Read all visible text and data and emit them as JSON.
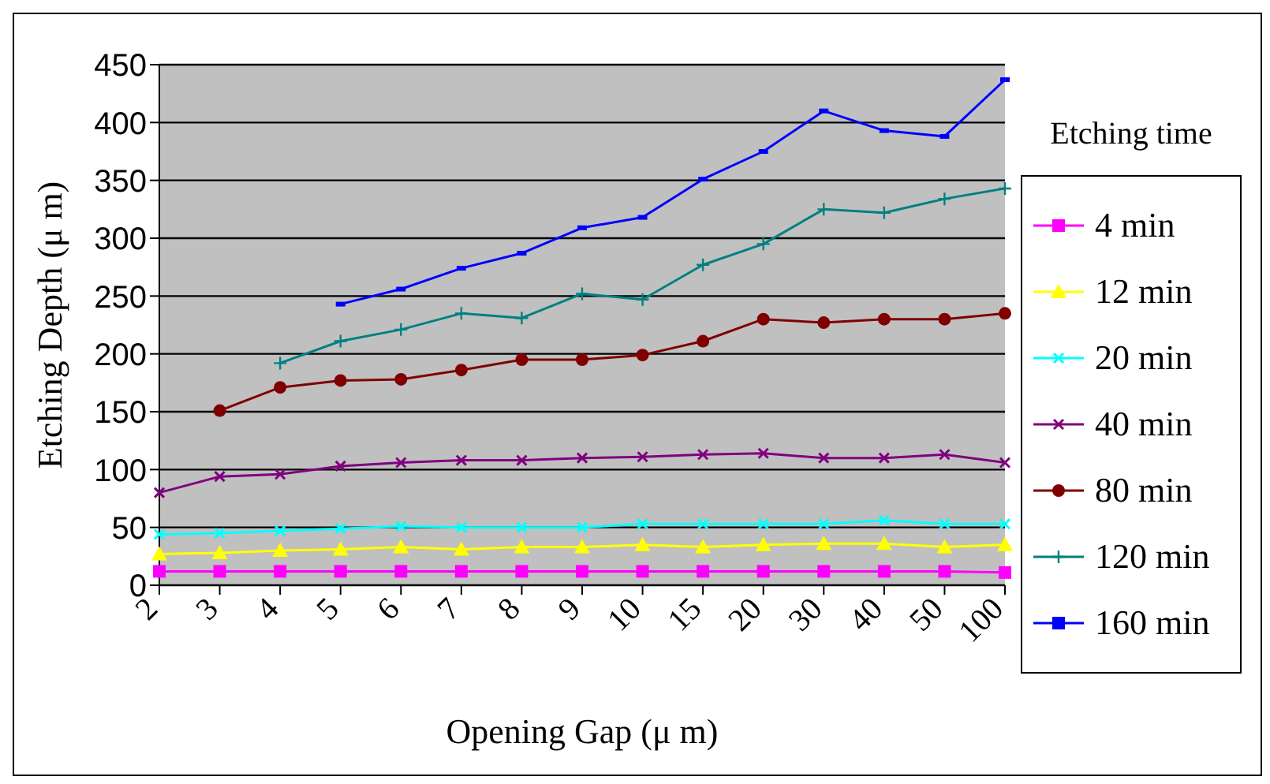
{
  "chart_data": {
    "type": "line",
    "xlabel": "Opening Gap (μ m)",
    "ylabel": "Etching Depth (μ m)",
    "legend_title": "Etching time",
    "categories": [
      "2",
      "3",
      "4",
      "5",
      "6",
      "7",
      "8",
      "9",
      "10",
      "15",
      "20",
      "30",
      "40",
      "50",
      "100"
    ],
    "ylim": [
      0,
      450
    ],
    "yticks": [
      0,
      50,
      100,
      150,
      200,
      250,
      300,
      350,
      400,
      450
    ],
    "grid": "y",
    "legend": "right",
    "series": [
      {
        "name": "4 min",
        "color": "#ff00ff",
        "marker": "square",
        "values": [
          12,
          12,
          12,
          12,
          12,
          12,
          12,
          12,
          12,
          12,
          12,
          12,
          12,
          12,
          11
        ]
      },
      {
        "name": "12 min",
        "color": "#ffff00",
        "marker": "triangle",
        "values": [
          27,
          28,
          30,
          31,
          33,
          31,
          33,
          33,
          35,
          33,
          35,
          36,
          36,
          33,
          35
        ]
      },
      {
        "name": "20 min",
        "color": "#00ffff",
        "marker": "cross",
        "values": [
          44,
          45,
          47,
          49,
          51,
          50,
          50,
          50,
          53,
          53,
          53,
          53,
          56,
          53,
          53
        ]
      },
      {
        "name": "40 min",
        "color": "#800080",
        "marker": "cross",
        "values": [
          80,
          94,
          96,
          103,
          106,
          108,
          108,
          110,
          111,
          113,
          114,
          110,
          110,
          113,
          106
        ]
      },
      {
        "name": "80 min",
        "color": "#800000",
        "marker": "circle",
        "values": [
          null,
          151,
          171,
          177,
          178,
          186,
          195,
          195,
          199,
          211,
          230,
          227,
          230,
          230,
          235
        ]
      },
      {
        "name": "120 min",
        "color": "#008080",
        "marker": "plus",
        "values": [
          null,
          null,
          192,
          211,
          221,
          235,
          231,
          252,
          247,
          277,
          295,
          325,
          322,
          334,
          343
        ]
      },
      {
        "name": "160 min",
        "color": "#0000ff",
        "marker": "square",
        "values": [
          null,
          null,
          null,
          243,
          256,
          274,
          287,
          309,
          318,
          351,
          375,
          410,
          393,
          388,
          437
        ]
      }
    ]
  }
}
